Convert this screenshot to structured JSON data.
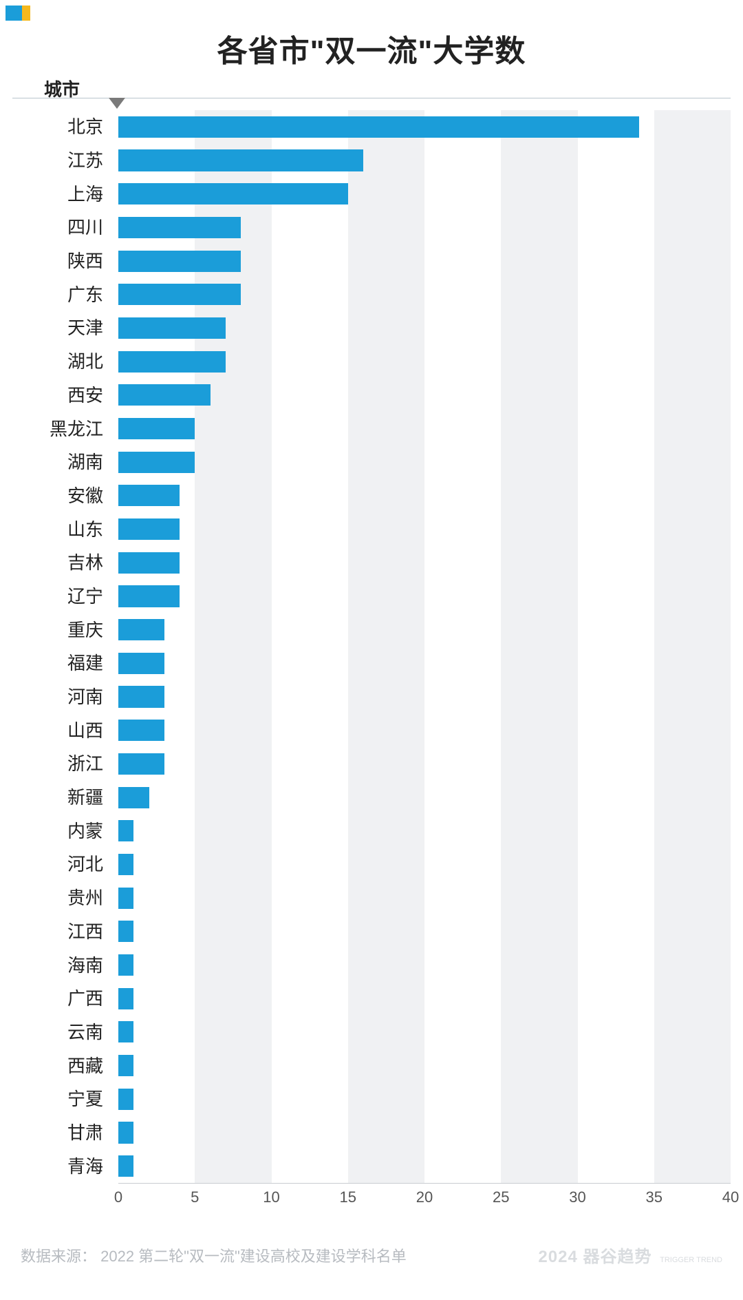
{
  "title": "各省市\"双一流\"大学数",
  "y_axis_label": "城市",
  "chart": {
    "type": "bar-horizontal",
    "bar_color": "#1b9dd9",
    "grid_band_color": "#f0f1f3",
    "background_color": "#ffffff",
    "axis_line_color": "#c8ccd0",
    "header_line_color": "#b8c4cc",
    "label_fontsize": 26,
    "tick_fontsize": 22,
    "title_fontsize": 44,
    "xlim": [
      0,
      40
    ],
    "xtick_step": 5,
    "xticks": [
      0,
      5,
      10,
      15,
      20,
      25,
      30,
      35,
      40
    ],
    "bar_fill_ratio": 0.64,
    "categories": [
      "北京",
      "江苏",
      "上海",
      "四川",
      "陕西",
      "广东",
      "天津",
      "湖北",
      "西安",
      "黑龙江",
      "湖南",
      "安徽",
      "山东",
      "吉林",
      "辽宁",
      "重庆",
      "福建",
      "河南",
      "山西",
      "浙江",
      "新疆",
      "内蒙",
      "河北",
      "贵州",
      "江西",
      "海南",
      "广西",
      "云南",
      "西藏",
      "宁夏",
      "甘肃",
      "青海"
    ],
    "values": [
      34,
      16,
      15,
      8,
      8,
      8,
      7,
      7,
      6,
      5,
      5,
      4,
      4,
      4,
      4,
      3,
      3,
      3,
      3,
      3,
      2,
      1,
      1,
      1,
      1,
      1,
      1,
      1,
      1,
      1,
      1,
      1
    ]
  },
  "footer": {
    "source": "数据来源： 2022 第二轮\"双一流\"建设高校及建设学科名单",
    "watermark_year": "2024",
    "watermark_brand": "器谷趋势",
    "watermark_sub": "TRIGGER TREND"
  },
  "corner_badge_colors": [
    "#1b9dd9",
    "#f5b81c"
  ]
}
